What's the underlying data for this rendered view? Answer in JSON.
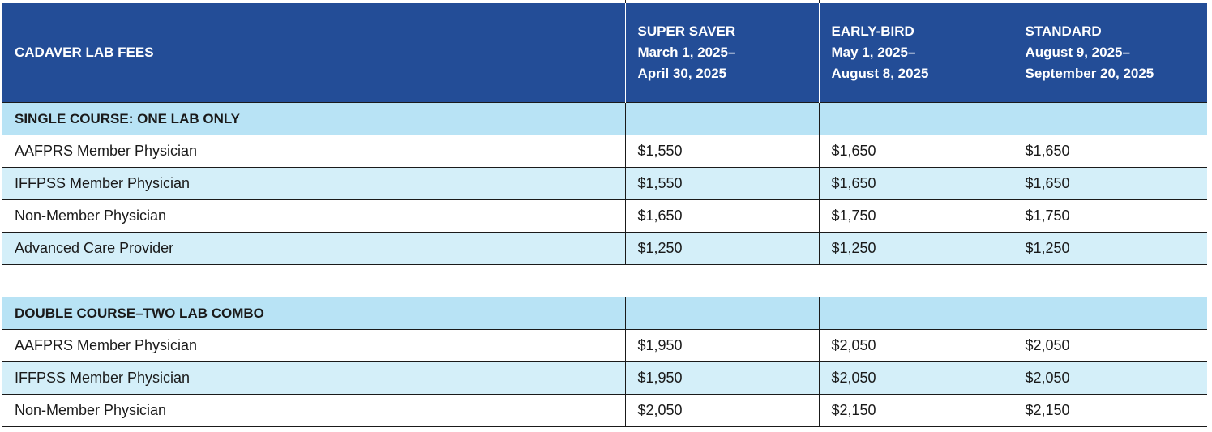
{
  "header": {
    "title": "CADAVER LAB FEES",
    "columns": [
      {
        "name": "SUPER SAVER",
        "line1": "March 1, 2025–",
        "line2": "April 30, 2025"
      },
      {
        "name": "EARLY-BIRD",
        "line1": "May 1, 2025–",
        "line2": "August 8, 2025"
      },
      {
        "name": "STANDARD",
        "line1": "August 9, 2025–",
        "line2": "September 20, 2025"
      }
    ]
  },
  "sections": [
    {
      "title": "SINGLE COURSE: ONE LAB ONLY",
      "rows": [
        {
          "label": "AAFPRS Member Physician",
          "prices": [
            "$1,550",
            "$1,650",
            "$1,650"
          ]
        },
        {
          "label": "IFFPSS Member Physician",
          "prices": [
            "$1,550",
            "$1,650",
            "$1,650"
          ]
        },
        {
          "label": "Non-Member Physician",
          "prices": [
            "$1,650",
            "$1,750",
            "$1,750"
          ]
        },
        {
          "label": "Advanced Care Provider",
          "prices": [
            "$1,250",
            "$1,250",
            "$1,250"
          ]
        }
      ]
    },
    {
      "title": "DOUBLE COURSE–TWO LAB COMBO",
      "rows": [
        {
          "label": "AAFPRS Member Physician",
          "prices": [
            "$1,950",
            "$2,050",
            "$2,050"
          ]
        },
        {
          "label": "IFFPSS Member Physician",
          "prices": [
            "$1,950",
            "$2,050",
            "$2,050"
          ]
        },
        {
          "label": "Non-Member Physician",
          "prices": [
            "$2,050",
            "$2,150",
            "$2,150"
          ]
        }
      ]
    }
  ]
}
